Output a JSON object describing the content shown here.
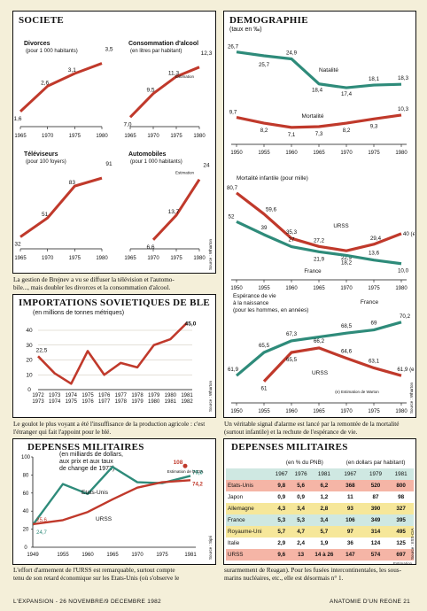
{
  "societe": {
    "title": "SOCIETE",
    "source": "Source : Wharton",
    "caption_prefix": "La gestion de Brejnev a vu se diffuser la télévision et l'automo-",
    "caption_rest": "bile..., mais doubler les divorces et la consommation d'alcool.",
    "estimation": "Estimation"
  },
  "demo": {
    "title": "DEMOGRAPHIE",
    "subtitle": "(taux en ‰)",
    "source": "Source : Wharton",
    "caption": "Un véritable signal d'alarme est lancé par la remontée de la mortalité (surtout infantile) et la rechute de l'espérance de vie.",
    "estimation_note": "(e) Estimation de Warton"
  },
  "ble": {
    "title": "IMPORTATIONS SOVIETIQUES DE BLE",
    "subtitle": "(en millions de tonnes métriques)",
    "source": "Source : Wharton",
    "caption": "Le goulot le plus voyant a été l'insuffisance de la production agricole : c'est l'étranger qui fait l'appoint pour le blé."
  },
  "mil": {
    "title": "DEPENSES MILITAIRES",
    "subtitle_l1": "(en milliards de dollars,",
    "subtitle_l2": "aux prix et aux taux",
    "subtitle_l3": "de change de 1973)",
    "estimation": "Estimation de la CIA",
    "source": "Source : Sipri",
    "caption_l1": "L'effort d'armement de l'URSS est remarquable, surtout compte",
    "caption_l2": "tenu de son retard économique sur les Etats-Unis (où s'observe le"
  },
  "table": {
    "title": "DEPENSES MILITAIRES",
    "group1": "(en % du PNB)",
    "group2": "(en dollars par habitant)",
    "years": [
      "1967",
      "1976",
      "1981",
      "1967",
      "1979",
      "1981"
    ],
    "rows": [
      {
        "country": "Etats-Unis",
        "values": [
          "9,8",
          "5,6",
          "6,2",
          "368",
          "520",
          "800"
        ],
        "bg": "#f5b5a6"
      },
      {
        "country": "Japon",
        "values": [
          "0,9",
          "0,9",
          "1,2",
          "11",
          "87",
          "98"
        ],
        "bg": "#ffffff"
      },
      {
        "country": "Allemagne",
        "values": [
          "4,3",
          "3,4",
          "2,8",
          "93",
          "390",
          "327"
        ],
        "bg": "#f6e79a"
      },
      {
        "country": "France",
        "values": [
          "5,3",
          "5,3",
          "3,4",
          "106",
          "349",
          "395"
        ],
        "bg": "#cfe8e2"
      },
      {
        "country": "Royaume-Uni",
        "values": [
          "5,7",
          "4,7",
          "5,7",
          "97",
          "314",
          "495"
        ],
        "bg": "#f6e79a"
      },
      {
        "country": "Italie",
        "values": [
          "2,9",
          "2,4",
          "1,9",
          "36",
          "124",
          "125"
        ],
        "bg": "#ffffff"
      },
      {
        "country": "URSS",
        "values": [
          "9,6",
          "13",
          "14 à 26",
          "147",
          "574",
          "697"
        ],
        "bg": "#f5b5a6",
        "est": "Estimation"
      }
    ],
    "source": "Source : IISS-CIA",
    "caption_l1": "surarmement de Reagan). Pour les fusées intercontinentales, les sous-",
    "caption_l2": "marins nucléaires, etc., elle est désormais n° 1."
  },
  "footer": {
    "left": "L'EXPANSION - 26 NOVEMBRE/9 DECEMBRE 1982",
    "right": "ANATOMIE D'UN REGNE   21"
  },
  "chart_data": [
    {
      "type": "line",
      "title": "Divorces",
      "subtitle": "(pour 1 000 habitants)",
      "x": [
        "1965",
        "1970",
        "1975",
        "1980"
      ],
      "series": [
        {
          "values": [
            1.6,
            2.6,
            3.1,
            3.5
          ],
          "labels": [
            "1,6",
            "2,6",
            "3,1",
            "3,5"
          ]
        }
      ],
      "color": "#c0392b"
    },
    {
      "type": "line",
      "title": "Consommation d'alcool",
      "subtitle": "(en litres par habitant)",
      "x": [
        "1965",
        "1970",
        "1975",
        "1980"
      ],
      "series": [
        {
          "values": [
            7.0,
            9.5,
            11.3,
            12.3
          ],
          "labels": [
            "7,0",
            "9,5",
            "11,3",
            "12,3"
          ]
        }
      ],
      "color": "#c0392b"
    },
    {
      "type": "line",
      "title": "Téléviseurs",
      "subtitle": "(pour 100 foyers)",
      "x": [
        "1965",
        "1970",
        "1975",
        "1980"
      ],
      "series": [
        {
          "values": [
            32,
            51,
            83,
            91
          ],
          "labels": [
            "32",
            "51",
            "83",
            "91"
          ]
        }
      ],
      "color": "#c0392b"
    },
    {
      "type": "line",
      "title": "Automobiles",
      "subtitle": "(pour 1 000 habitants)",
      "x": [
        "1965",
        "1970",
        "1975",
        "1980"
      ],
      "series": [
        {
          "values": [
            6.6,
            13.7,
            24
          ],
          "labels": [
            "6,6",
            "13,7",
            "24"
          ],
          "x": [
            "1970",
            "1975",
            "1980"
          ]
        }
      ],
      "color": "#c0392b"
    },
    {
      "type": "line",
      "title": "",
      "x": [
        "1950",
        "1955",
        "1960",
        "1965",
        "1970",
        "1975",
        "1980"
      ],
      "series": [
        {
          "name": "Natalité",
          "values": [
            26.7,
            25.7,
            24.9,
            18.4,
            17.4,
            18.1,
            18.3
          ],
          "labels": [
            "26,7",
            "25,7",
            "24,9",
            "18,4",
            "17,4",
            "18,1",
            "18,3"
          ],
          "color": "#2e8b7a"
        },
        {
          "name": "Mortalité",
          "values": [
            9.7,
            8.2,
            7.1,
            7.3,
            8.2,
            9.3,
            10.3
          ],
          "labels": [
            "9,7",
            "8,2",
            "7,1",
            "7,3",
            "8,2",
            "9,3",
            "10,3"
          ],
          "color": "#c0392b"
        }
      ]
    },
    {
      "type": "line",
      "title": "Mortalité infantile (pour mille)",
      "x": [
        "1950",
        "1955",
        "1960",
        "1965",
        "1970",
        "1975",
        "1980"
      ],
      "series": [
        {
          "name": "URSS",
          "values": [
            80.7,
            59.6,
            35.3,
            27.2,
            22.9,
            29.4,
            40
          ],
          "labels": [
            "80,7",
            "59,6",
            "35,3",
            "27,2",
            "22,9",
            "29,4",
            "40 (e)"
          ],
          "color": "#c0392b"
        },
        {
          "name": "France",
          "values": [
            52,
            39,
            27,
            21.9,
            18.2,
            13.6,
            10.0
          ],
          "labels": [
            "52",
            "39",
            "27",
            "21,9",
            "18,2",
            "13,6",
            "10,0"
          ],
          "color": "#2e8b7a"
        }
      ]
    },
    {
      "type": "line",
      "title": "Espérance de vie à la naissance",
      "subtitle": "(pour les hommes, en années)",
      "x": [
        "1950",
        "1955",
        "1960",
        "1965",
        "1970",
        "1975",
        "1980"
      ],
      "series": [
        {
          "name": "France",
          "values": [
            61.9,
            65.5,
            67.3,
            null,
            68.5,
            69,
            70.2
          ],
          "labels": [
            "61,9",
            "65,5",
            "67,3",
            "",
            "68,5",
            "69",
            "70,2"
          ],
          "color": "#2e8b7a"
        },
        {
          "name": "URSS",
          "values": [
            null,
            61,
            65.5,
            66.2,
            64.6,
            63.1,
            61.9
          ],
          "labels": [
            "",
            "61",
            "65,5",
            "66,2",
            "64,6",
            "63,1",
            "61,9 (e)"
          ],
          "color": "#c0392b"
        }
      ]
    },
    {
      "type": "line",
      "title": "IMPORTATIONS SOVIETIQUES DE BLE",
      "x": [
        "1972\n1973",
        "1973\n1974",
        "1974\n1975",
        "1975\n1976",
        "1976\n1977",
        "1977\n1978",
        "1978\n1979",
        "1979\n1980",
        "1980\n1981",
        "1981\n1982"
      ],
      "ylim": [
        0,
        40
      ],
      "yticks": [
        0,
        10,
        20,
        30,
        40
      ],
      "series": [
        {
          "values": [
            22.5,
            11,
            4,
            26,
            10,
            18,
            15,
            30,
            34,
            45.0
          ],
          "first_label": "22,5",
          "last_label": "45,0",
          "color": "#c0392b"
        }
      ]
    },
    {
      "type": "line",
      "title": "DEPENSES MILITAIRES",
      "x": [
        "1949",
        "1955",
        "1960",
        "1965",
        "1970",
        "1975",
        "1981"
      ],
      "ylim": [
        0,
        100
      ],
      "yticks": [
        0,
        20,
        40,
        60,
        80,
        100
      ],
      "series": [
        {
          "name": "Etats-Unis",
          "values": [
            24.7,
            70,
            59,
            89,
            72,
            71,
            79.0
          ],
          "first_label": "24,7",
          "last_label": "79,0",
          "color": "#2e8b7a"
        },
        {
          "name": "URSS",
          "values": [
            25.6,
            30,
            39,
            53,
            66,
            72,
            74.2
          ],
          "first_label": "25,6",
          "last_label": "74,2",
          "extra_label": "108",
          "color": "#c0392b"
        }
      ]
    }
  ]
}
